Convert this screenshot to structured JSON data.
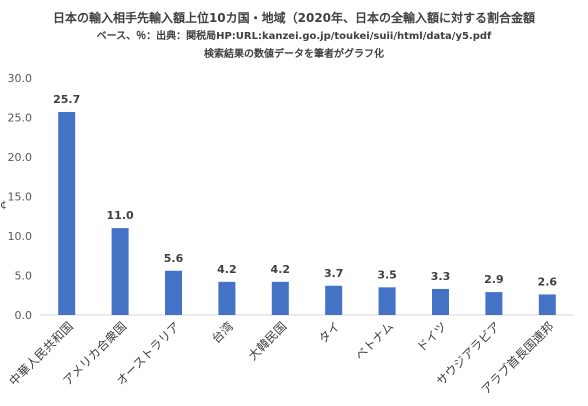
{
  "chart_data": {
    "type": "bar",
    "title": "日本の輸入相手先輸入額上位10カ国・地域（2020年、日本の全輸入額に対する割合金額",
    "subtitle": "ベース、％：出典：関税局HP:URL:kanzei.go.jp/toukei/suii/html/data/y5.pdf",
    "subtitle2": "検索結果の数値データを筆者がグラフ化",
    "xlabel": "",
    "ylabel": "",
    "categories": [
      "中華人民共和国",
      "アメリカ合衆国",
      "オーストラリア",
      "台湾",
      "大韓民国",
      "タイ",
      "ベトナム",
      "ドイツ",
      "サウジアラビア",
      "アラブ首長国連邦"
    ],
    "values": [
      25.7,
      11.0,
      5.6,
      4.2,
      4.2,
      3.7,
      3.5,
      3.3,
      2.9,
      2.6
    ],
    "value_labels": [
      "25.7",
      "11.0",
      "5.6",
      "4.2",
      "4.2",
      "3.7",
      "3.5",
      "3.3",
      "2.9",
      "2.6"
    ],
    "ylim": [
      0,
      30
    ],
    "yticks": [
      "0.0",
      "5.0",
      "10.0",
      "15.0",
      "20.0",
      "25.0",
      "30.0"
    ],
    "ytick_values": [
      0,
      5,
      10,
      15,
      20,
      25,
      30
    ],
    "grid": false,
    "legend": "none",
    "bar_color": "#4472c4"
  },
  "edge_glyph": "¢"
}
